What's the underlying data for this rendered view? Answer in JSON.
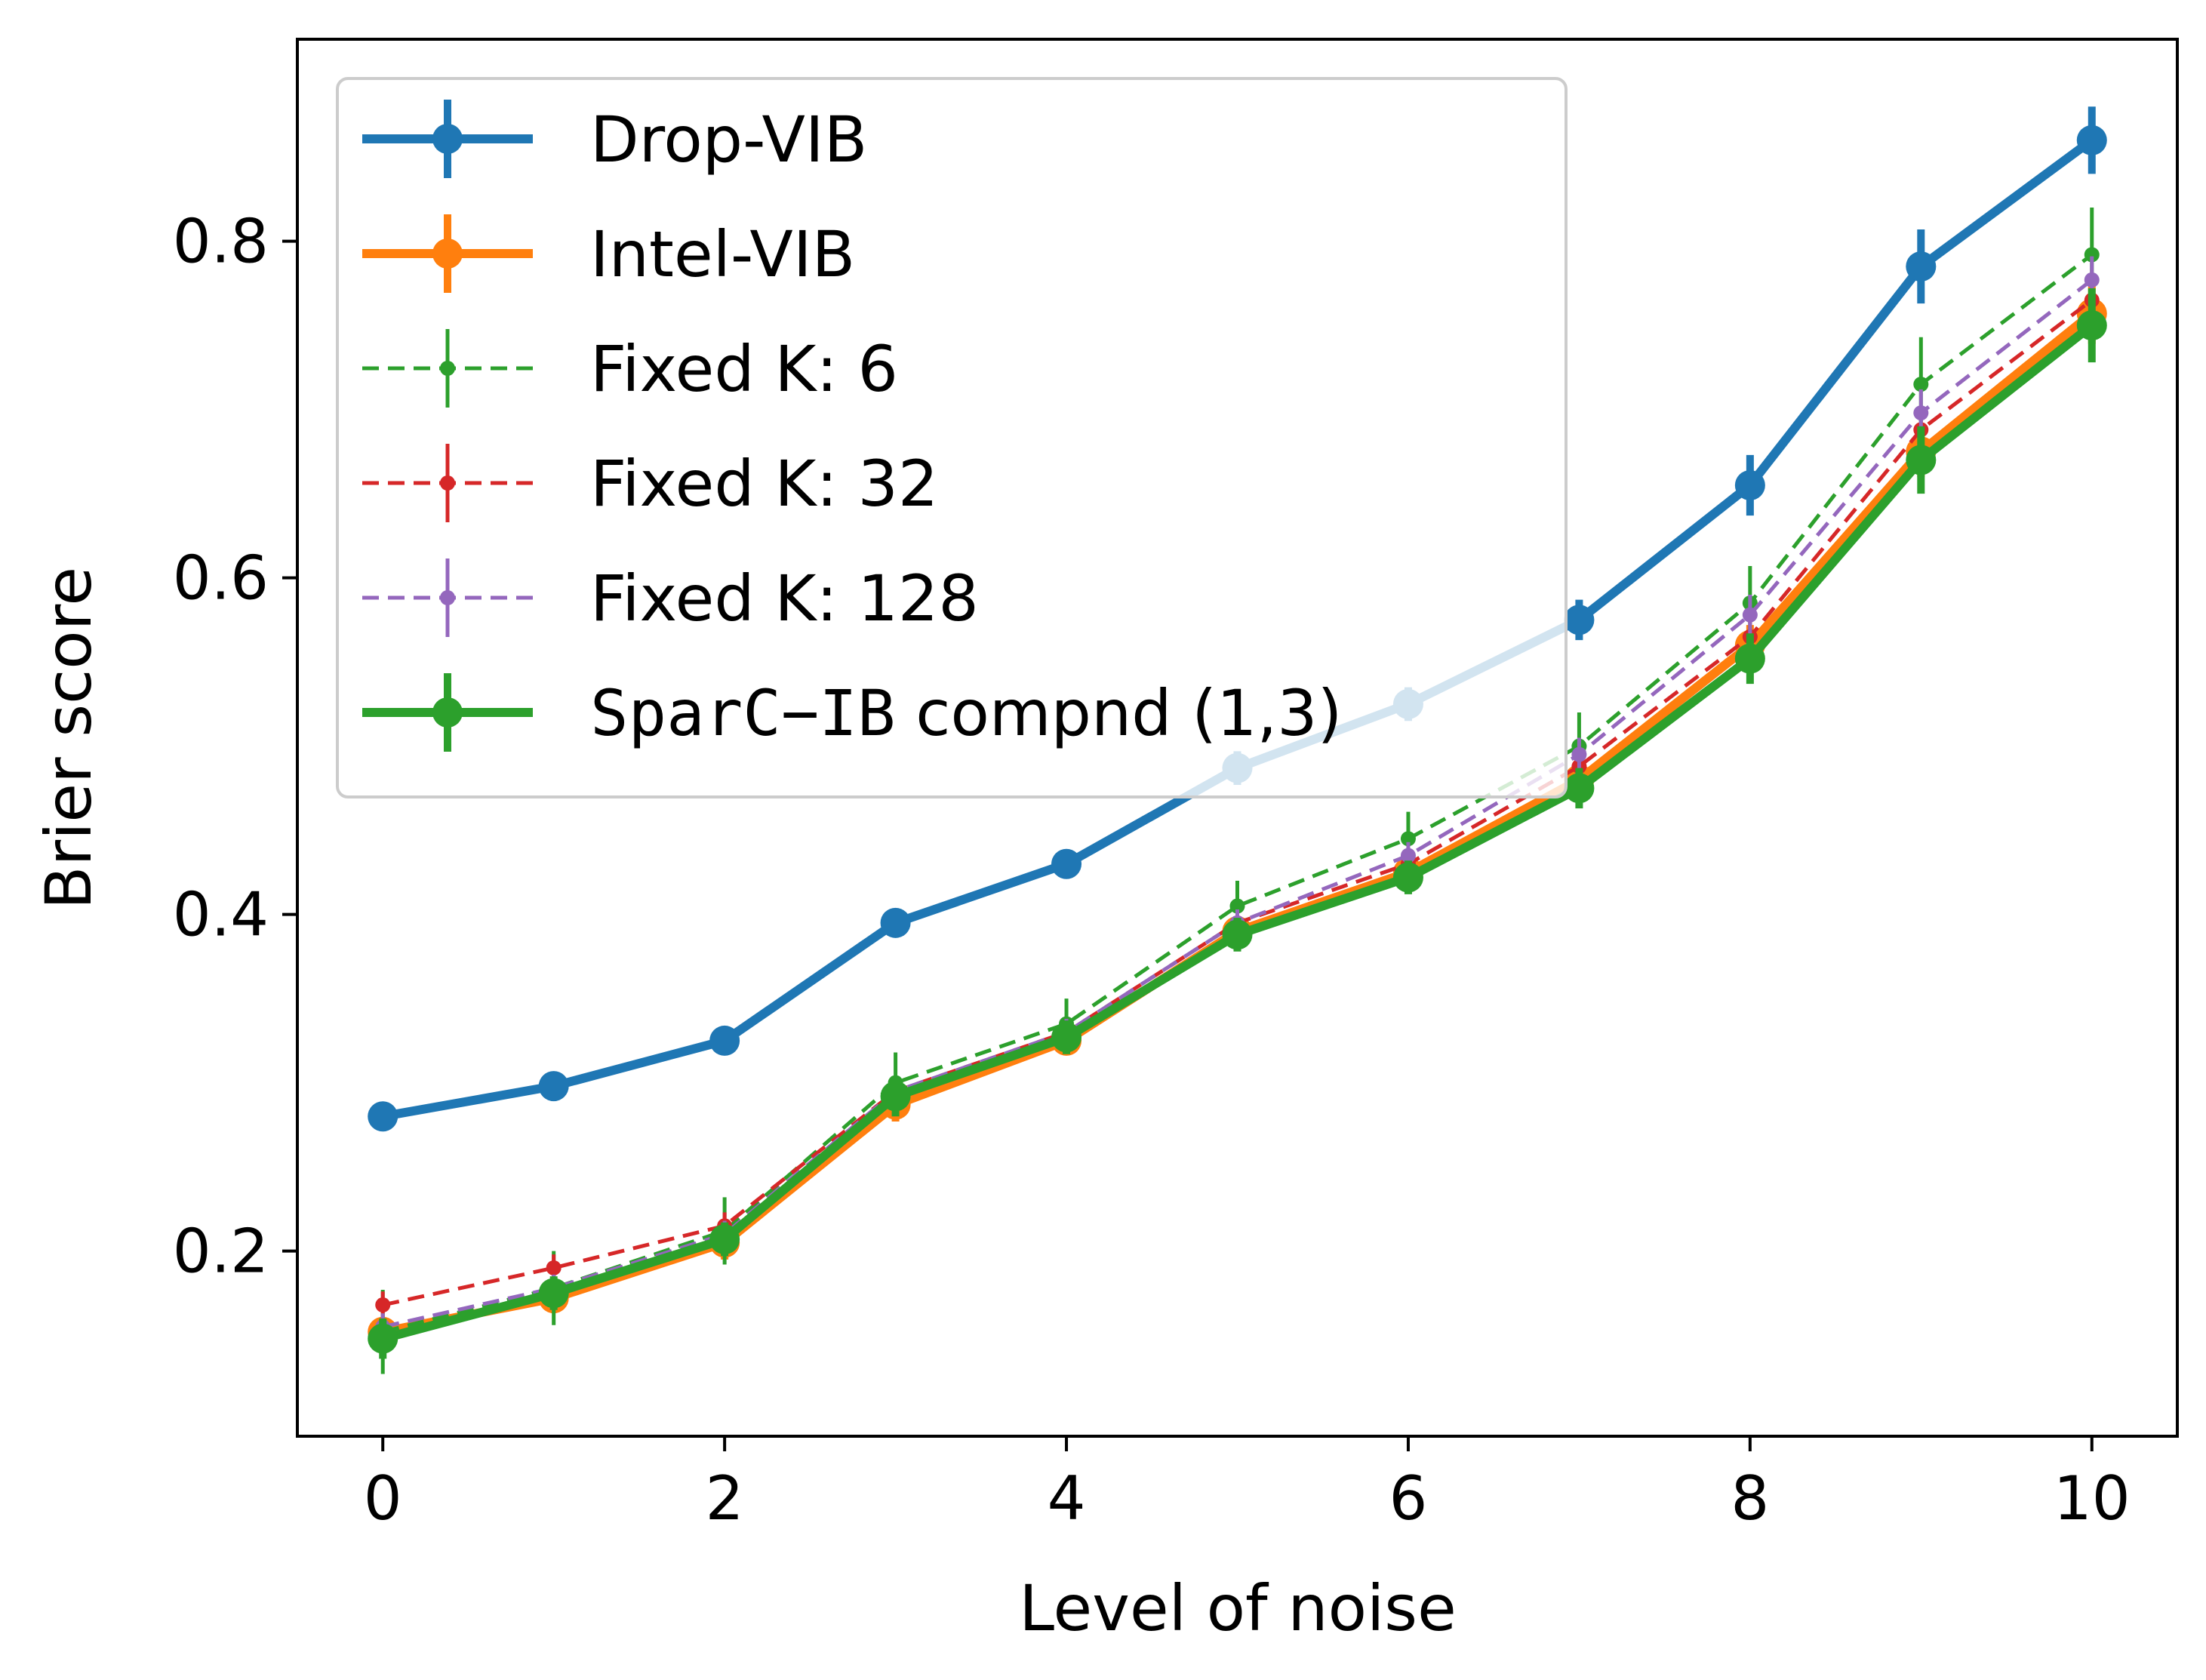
{
  "chart_data": {
    "type": "line",
    "title": "",
    "xlabel": "Level of noise",
    "ylabel": "Brier score",
    "xlim": [
      -0.5,
      10.5
    ],
    "ylim": [
      0.09,
      0.92
    ],
    "xticks": [
      0,
      2,
      4,
      6,
      8,
      10
    ],
    "xtick_labels": [
      "0",
      "2",
      "4",
      "6",
      "8",
      "10"
    ],
    "yticks": [
      0.2,
      0.4,
      0.6,
      0.8
    ],
    "ytick_labels": [
      "0.2",
      "0.4",
      "0.6",
      "0.8"
    ],
    "grid": false,
    "legend_position": "top-left",
    "x": [
      0,
      1,
      2,
      3,
      4,
      5,
      6,
      7,
      8,
      9,
      10
    ],
    "series": [
      {
        "name": "Drop-VIB",
        "legend_mono": "",
        "legend_text": "Drop-VIB",
        "color": "#1f77b4",
        "style": "solid",
        "weight": "thick",
        "values": [
          0.28,
          0.298,
          0.325,
          0.395,
          0.43,
          0.487,
          0.525,
          0.575,
          0.655,
          0.785,
          0.86
        ],
        "errors": [
          0.005,
          0.006,
          0.007,
          0.008,
          0.008,
          0.01,
          0.01,
          0.012,
          0.018,
          0.022,
          0.02
        ]
      },
      {
        "name": "Intel-VIB",
        "legend_mono": "",
        "legend_text": "Intel-VIB",
        "color": "#ff7f0e",
        "style": "solid",
        "weight": "thick",
        "values": [
          0.152,
          0.172,
          0.205,
          0.287,
          0.325,
          0.39,
          0.425,
          0.48,
          0.56,
          0.675,
          0.757
        ],
        "errors": [
          0.008,
          0.008,
          0.01,
          0.01,
          0.008,
          0.008,
          0.008,
          0.01,
          0.012,
          0.015,
          0.018
        ]
      },
      {
        "name": "Fixed K: 6",
        "legend_mono": "",
        "legend_text": "Fixed K: 6",
        "color": "#2ca02c",
        "style": "dashed",
        "weight": "thin",
        "values": [
          0.152,
          0.178,
          0.212,
          0.3,
          0.335,
          0.405,
          0.445,
          0.5,
          0.585,
          0.715,
          0.792
        ],
        "errors": [
          0.025,
          0.022,
          0.02,
          0.018,
          0.015,
          0.015,
          0.016,
          0.02,
          0.022,
          0.028,
          0.028
        ]
      },
      {
        "name": "Fixed K: 32",
        "legend_mono": "",
        "legend_text": "Fixed K: 32",
        "color": "#d62728",
        "style": "dashed",
        "weight": "thin",
        "values": [
          0.168,
          0.19,
          0.215,
          0.295,
          0.33,
          0.395,
          0.43,
          0.488,
          0.565,
          0.688,
          0.765
        ],
        "errors": [
          0.008,
          0.008,
          0.008,
          0.008,
          0.008,
          0.008,
          0.008,
          0.01,
          0.012,
          0.012,
          0.015
        ]
      },
      {
        "name": "Fixed K: 128",
        "legend_mono": "",
        "legend_text": "Fixed K: 128",
        "color": "#9467bd",
        "style": "dashed",
        "weight": "thin",
        "values": [
          0.155,
          0.178,
          0.21,
          0.295,
          0.33,
          0.395,
          0.435,
          0.495,
          0.578,
          0.698,
          0.777
        ],
        "errors": [
          0.008,
          0.008,
          0.008,
          0.008,
          0.008,
          0.008,
          0.008,
          0.01,
          0.012,
          0.014,
          0.014
        ]
      },
      {
        "name": "SparC-IB compnd (1,3)",
        "legend_mono": "SparC−IB",
        "legend_text": " compnd (1,3)",
        "color": "#2ca02c",
        "style": "solid",
        "weight": "thick",
        "values": [
          0.148,
          0.175,
          0.207,
          0.292,
          0.327,
          0.388,
          0.422,
          0.475,
          0.552,
          0.67,
          0.75
        ],
        "errors": [
          0.012,
          0.01,
          0.01,
          0.012,
          0.01,
          0.01,
          0.01,
          0.012,
          0.015,
          0.02,
          0.022
        ]
      }
    ]
  }
}
